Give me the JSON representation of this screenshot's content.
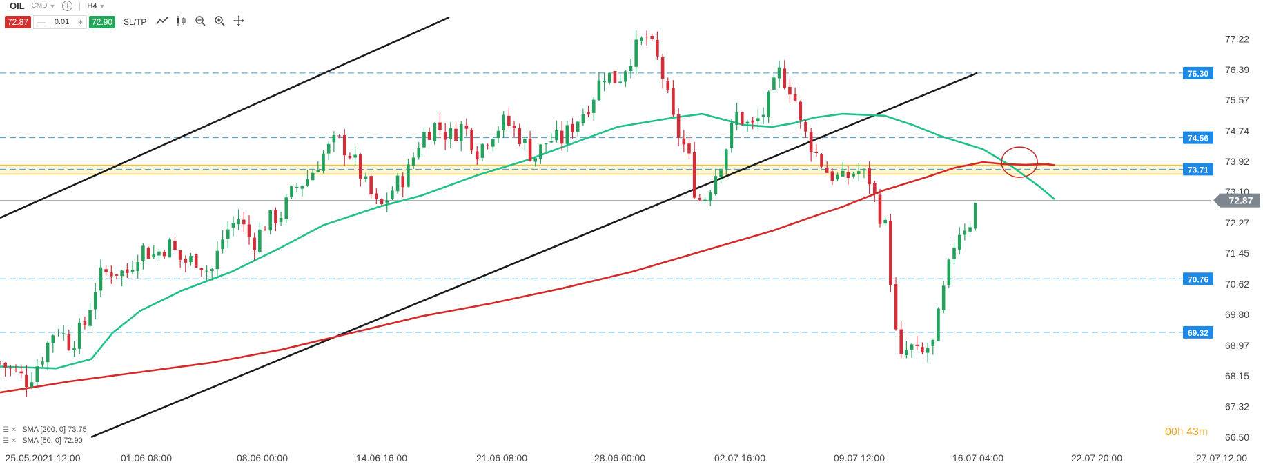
{
  "toolbar": {
    "symbol": "OIL",
    "market_type": "CMD",
    "info_icon": "info-icon",
    "timeframe": "H4",
    "sell_price": "72.87",
    "lot_minus": "—",
    "lot_value": "0.01",
    "lot_plus": "+",
    "buy_price": "72.90",
    "sltp_label": "SL/TP",
    "icons": [
      "line-chart-icon",
      "candlestick-icon",
      "zoom-out-icon",
      "zoom-in-icon",
      "crosshair-icon"
    ],
    "colors": {
      "sell": "#d32f2f",
      "buy": "#26a65b"
    }
  },
  "indicators": [
    {
      "label": "SMA [200, 0]",
      "value": "73.75"
    },
    {
      "label": "SMA [50, 0]",
      "value": "72.90"
    }
  ],
  "timer": {
    "hours": "00",
    "h": "h",
    "minutes": "43",
    "m": "m"
  },
  "chart_data": {
    "type": "candlestick",
    "instrument": "OIL",
    "timeframe": "H4",
    "ylim": [
      66.2,
      77.8
    ],
    "y_ticks": [
      "77.22",
      "76.39",
      "75.57",
      "74.74",
      "73.92",
      "73.10",
      "72.27",
      "71.45",
      "70.62",
      "69.80",
      "68.97",
      "68.15",
      "67.32",
      "66.50"
    ],
    "x_ticks": [
      "25.05.2021 12:00",
      "01.06 08:00",
      "08.06 00:00",
      "14.06 16:00",
      "21.06 08:00",
      "28.06 00:00",
      "02.07 16:00",
      "09.07 12:00",
      "16.07 04:00",
      "22.07 20:00",
      "27.07 12:00"
    ],
    "current_price": "72.87",
    "horizontal_levels": [
      {
        "label": "76.30",
        "value": 76.3
      },
      {
        "label": "74.56",
        "value": 74.56
      },
      {
        "label": "73.71",
        "value": 73.71
      },
      {
        "label": "70.76",
        "value": 70.76
      },
      {
        "label": "69.32",
        "value": 69.32
      }
    ],
    "support_zone": [
      73.58,
      73.82
    ],
    "sma200": [
      [
        0,
        67.7
      ],
      [
        100,
        68.0
      ],
      [
        200,
        68.25
      ],
      [
        300,
        68.5
      ],
      [
        400,
        68.85
      ],
      [
        500,
        69.3
      ],
      [
        600,
        69.75
      ],
      [
        700,
        70.1
      ],
      [
        800,
        70.5
      ],
      [
        900,
        70.95
      ],
      [
        1000,
        71.5
      ],
      [
        1100,
        72.05
      ],
      [
        1160,
        72.45
      ],
      [
        1200,
        72.7
      ],
      [
        1260,
        73.15
      ],
      [
        1320,
        73.5
      ],
      [
        1360,
        73.75
      ],
      [
        1400,
        73.9
      ],
      [
        1430,
        73.85
      ],
      [
        1460,
        73.83
      ],
      [
        1490,
        73.85
      ],
      [
        1502,
        73.82
      ]
    ],
    "sma50": [
      [
        0,
        68.4
      ],
      [
        80,
        68.35
      ],
      [
        130,
        68.6
      ],
      [
        160,
        69.3
      ],
      [
        200,
        69.9
      ],
      [
        260,
        70.45
      ],
      [
        330,
        70.95
      ],
      [
        400,
        71.6
      ],
      [
        460,
        72.2
      ],
      [
        540,
        72.7
      ],
      [
        600,
        73.0
      ],
      [
        680,
        73.55
      ],
      [
        750,
        73.95
      ],
      [
        800,
        74.3
      ],
      [
        880,
        74.85
      ],
      [
        960,
        75.1
      ],
      [
        1000,
        75.2
      ],
      [
        1060,
        74.9
      ],
      [
        1100,
        74.85
      ],
      [
        1130,
        74.95
      ],
      [
        1160,
        75.1
      ],
      [
        1200,
        75.2
      ],
      [
        1260,
        75.15
      ],
      [
        1300,
        74.9
      ],
      [
        1340,
        74.6
      ],
      [
        1400,
        74.25
      ],
      [
        1440,
        73.8
      ],
      [
        1480,
        73.25
      ],
      [
        1502,
        72.9
      ]
    ],
    "trendlines": [
      {
        "from": [
          0,
          72.4
        ],
        "to": [
          640,
          77.8
        ]
      },
      {
        "from": [
          130,
          66.5
        ],
        "to": [
          1392,
          76.3
        ]
      }
    ],
    "highlight_circle": {
      "x": 1452,
      "y": 73.9
    },
    "candles_path": [
      [
        0,
        68.5
      ],
      [
        40,
        68.0
      ],
      [
        60,
        68.7
      ],
      [
        80,
        69.5
      ],
      [
        100,
        69.0
      ],
      [
        120,
        69.5
      ],
      [
        140,
        70.8
      ],
      [
        160,
        71.0
      ],
      [
        180,
        70.9
      ],
      [
        200,
        71.6
      ],
      [
        220,
        71.4
      ],
      [
        240,
        71.7
      ],
      [
        260,
        71.2
      ],
      [
        280,
        71.3
      ],
      [
        300,
        70.9
      ],
      [
        320,
        72.0
      ],
      [
        340,
        72.4
      ],
      [
        360,
        71.7
      ],
      [
        380,
        72.3
      ],
      [
        400,
        72.5
      ],
      [
        420,
        73.2
      ],
      [
        440,
        73.5
      ],
      [
        460,
        74.1
      ],
      [
        480,
        74.5
      ],
      [
        500,
        74.1
      ],
      [
        520,
        73.3
      ],
      [
        540,
        72.6
      ],
      [
        560,
        73.2
      ],
      [
        580,
        73.6
      ],
      [
        600,
        74.6
      ],
      [
        620,
        74.9
      ],
      [
        640,
        74.6
      ],
      [
        660,
        74.9
      ],
      [
        680,
        74.2
      ],
      [
        700,
        74.7
      ],
      [
        720,
        75.0
      ],
      [
        740,
        74.6
      ],
      [
        760,
        74.0
      ],
      [
        780,
        74.5
      ],
      [
        800,
        74.5
      ],
      [
        820,
        75.0
      ],
      [
        840,
        75.5
      ],
      [
        860,
        76.3
      ],
      [
        880,
        76.1
      ],
      [
        900,
        76.8
      ],
      [
        920,
        77.3
      ],
      [
        940,
        76.5
      ],
      [
        960,
        74.9
      ],
      [
        980,
        74.1
      ],
      [
        990,
        73.1
      ],
      [
        1000,
        72.8
      ],
      [
        1010,
        73.2
      ],
      [
        1030,
        74.1
      ],
      [
        1050,
        75.2
      ],
      [
        1070,
        74.8
      ],
      [
        1090,
        75.3
      ],
      [
        1110,
        76.3
      ],
      [
        1130,
        75.8
      ],
      [
        1140,
        74.9
      ],
      [
        1160,
        74.2
      ],
      [
        1180,
        73.6
      ],
      [
        1200,
        73.4
      ],
      [
        1220,
        73.7
      ],
      [
        1240,
        73.4
      ],
      [
        1250,
        72.6
      ],
      [
        1260,
        72.3
      ],
      [
        1270,
        70.5
      ],
      [
        1280,
        68.4
      ],
      [
        1290,
        68.8
      ],
      [
        1300,
        68.9
      ],
      [
        1310,
        68.6
      ],
      [
        1320,
        68.9
      ],
      [
        1330,
        69.0
      ],
      [
        1340,
        70.1
      ],
      [
        1350,
        70.9
      ],
      [
        1360,
        71.8
      ],
      [
        1370,
        72.2
      ],
      [
        1380,
        72.2
      ],
      [
        1392,
        72.9
      ]
    ]
  }
}
